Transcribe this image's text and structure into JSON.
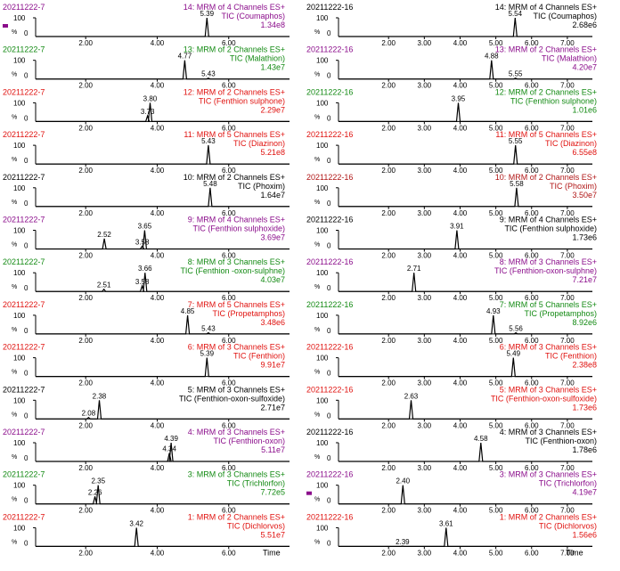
{
  "colors": {
    "black": "#000000",
    "purple": "#8b0d8b",
    "green": "#138a13",
    "red": "#e0120f",
    "darkred": "#b01515",
    "trace": "#000000",
    "marker": "#8b0d8b"
  },
  "chart_data": [
    {
      "type": "line",
      "sample": "20211222-7",
      "x_axis_label": "Time",
      "xlim": [
        0.6,
        7.7
      ],
      "ylim": [
        0,
        100
      ],
      "x_ticks": [
        "2.00",
        "4.00",
        "6.00"
      ],
      "y_ticks": [
        "100",
        "0"
      ],
      "y_unit": "%",
      "panels": [
        {
          "channel": "14: MRM of 4 Channels ES+",
          "compound": "TIC (Coumaphos)",
          "intensity": "1.34e8",
          "color": "purple",
          "peaks": [
            {
              "rt": 5.39,
              "h": 100,
              "label": "5.39"
            }
          ],
          "marker": true
        },
        {
          "channel": "13: MRM of 2 Channels ES+",
          "compound": "TIC (Malathion)",
          "intensity": "1.43e7",
          "color": "green",
          "peaks": [
            {
              "rt": 4.77,
              "h": 100,
              "label": "4.77"
            },
            {
              "rt": 5.43,
              "h": 5,
              "label": "5.43"
            }
          ]
        },
        {
          "channel": "12: MRM of 2 Channels ES+",
          "compound": "TIC (Fenthion sulphone)",
          "intensity": "2.29e7",
          "color": "red",
          "peaks": [
            {
              "rt": 3.8,
              "h": 100,
              "label": "3.80"
            },
            {
              "rt": 3.73,
              "h": 30,
              "label": "3.73"
            }
          ]
        },
        {
          "channel": "11: MRM of 5 Channels ES+",
          "compound": "TIC (Diazinon)",
          "intensity": "5.21e8",
          "color": "red",
          "peaks": [
            {
              "rt": 5.43,
              "h": 100,
              "label": "5.43"
            }
          ]
        },
        {
          "channel": "10: MRM of 2 Channels ES+",
          "compound": "TIC (Phoxim)",
          "intensity": "1.64e7",
          "color": "black",
          "peaks": [
            {
              "rt": 5.48,
              "h": 100,
              "label": "5.48"
            }
          ]
        },
        {
          "channel": "9: MRM of 4 Channels ES+",
          "compound": "TIC (Fenthion sulphoxide)",
          "intensity": "3.69e7",
          "color": "purple",
          "peaks": [
            {
              "rt": 3.65,
              "h": 100,
              "label": "3.65"
            },
            {
              "rt": 2.52,
              "h": 55,
              "label": "2.52"
            },
            {
              "rt": 3.58,
              "h": 15,
              "label": "3.58"
            }
          ]
        },
        {
          "channel": "8: MRM of 3 Channels ES+",
          "compound": "TIC (Fenthion -oxon-sulphne)",
          "intensity": "4.03e7",
          "color": "green",
          "peaks": [
            {
              "rt": 3.66,
              "h": 100,
              "label": "3.66"
            },
            {
              "rt": 3.58,
              "h": 30,
              "label": "3.58"
            },
            {
              "rt": 2.51,
              "h": 12,
              "label": "2.51"
            }
          ]
        },
        {
          "channel": "7: MRM of 5 Channels ES+",
          "compound": "TIC (Propetamphos)",
          "intensity": "3.48e6",
          "color": "red",
          "peaks": [
            {
              "rt": 4.85,
              "h": 100,
              "label": "4.85"
            },
            {
              "rt": 5.43,
              "h": 6,
              "label": "5.43"
            }
          ]
        },
        {
          "channel": "6: MRM of 3 Channels ES+",
          "compound": "TIC (Fenthion)",
          "intensity": "9.91e7",
          "color": "red",
          "peaks": [
            {
              "rt": 5.39,
              "h": 100,
              "label": "5.39"
            }
          ]
        },
        {
          "channel": "5: MRM of 3 Channels ES+",
          "compound": "TIC (Fenthion-oxon-sulfoxide)",
          "intensity": "2.71e7",
          "color": "black",
          "peaks": [
            {
              "rt": 2.38,
              "h": 100,
              "label": "2.38"
            },
            {
              "rt": 2.08,
              "h": 8,
              "label": "2.08"
            }
          ]
        },
        {
          "channel": "4: MRM of 3 Channels ES+",
          "compound": "TIC (Fenthion-oxon)",
          "intensity": "5.11e7",
          "color": "purple",
          "peaks": [
            {
              "rt": 4.39,
              "h": 100,
              "label": "4.39"
            },
            {
              "rt": 4.34,
              "h": 45,
              "label": "4.34"
            }
          ]
        },
        {
          "channel": "3: MRM of 3 Channels ES+",
          "compound": "TIC (Trichlorfon)",
          "intensity": "7.72e5",
          "color": "green",
          "peaks": [
            {
              "rt": 2.35,
              "h": 100,
              "label": "2.35"
            },
            {
              "rt": 2.26,
              "h": 40,
              "label": "2.26"
            }
          ]
        },
        {
          "channel": "1: MRM of 2 Channels ES+",
          "compound": "TIC (Dichlorvos)",
          "intensity": "5.51e7",
          "color": "red",
          "peaks": [
            {
              "rt": 3.42,
              "h": 100,
              "label": "3.42"
            }
          ]
        }
      ]
    },
    {
      "type": "line",
      "sample": "20211222-16",
      "x_axis_label": "Time",
      "xlim": [
        0.6,
        7.7
      ],
      "ylim": [
        0,
        100
      ],
      "x_ticks": [
        "2.00",
        "3.00",
        "4.00",
        "5.00",
        "6.00",
        "7.00"
      ],
      "y_ticks": [
        "100",
        "0"
      ],
      "y_unit": "%",
      "panels": [
        {
          "channel": "14: MRM of 4 Channels ES+",
          "compound": "TIC (Coumaphos)",
          "intensity": "2.68e6",
          "color": "black",
          "peaks": [
            {
              "rt": 5.54,
              "h": 100,
              "label": "5.54"
            }
          ]
        },
        {
          "channel": "13: MRM of 2 Channels ES+",
          "compound": "TIC (Malathion)",
          "intensity": "4.20e7",
          "color": "purple",
          "peaks": [
            {
              "rt": 4.88,
              "h": 100,
              "label": "4.88"
            },
            {
              "rt": 5.55,
              "h": 5,
              "label": "5.55"
            }
          ]
        },
        {
          "channel": "12: MRM of 2 Channels ES+",
          "compound": "TIC (Fenthion sulphone)",
          "intensity": "1.01e6",
          "color": "green",
          "peaks": [
            {
              "rt": 3.95,
              "h": 100,
              "label": "3.95"
            }
          ]
        },
        {
          "channel": "11: MRM of 5 Channels ES+",
          "compound": "TIC (Diazinon)",
          "intensity": "6.55e8",
          "color": "red",
          "peaks": [
            {
              "rt": 5.55,
              "h": 100,
              "label": "5.55"
            }
          ]
        },
        {
          "channel": "10: MRM of 2 Channels ES+",
          "compound": "TIC (Phoxim)",
          "intensity": "3.50e7",
          "color": "darkred",
          "peaks": [
            {
              "rt": 5.58,
              "h": 100,
              "label": "5.58"
            }
          ]
        },
        {
          "channel": "9: MRM of 4 Channels ES+",
          "compound": "TIC (Fenthion sulphoxide)",
          "intensity": "1.73e6",
          "color": "black",
          "peaks": [
            {
              "rt": 3.91,
              "h": 100,
              "label": "3.91"
            }
          ]
        },
        {
          "channel": "8: MRM of 3 Channels ES+",
          "compound": "TIC (Fenthion-oxon-sulphne)",
          "intensity": "7.21e7",
          "color": "purple",
          "peaks": [
            {
              "rt": 2.71,
              "h": 100,
              "label": "2.71"
            }
          ]
        },
        {
          "channel": "7: MRM of 5 Channels ES+",
          "compound": "TIC (Propetamphos)",
          "intensity": "8.92e6",
          "color": "green",
          "peaks": [
            {
              "rt": 4.93,
              "h": 100,
              "label": "4.93"
            },
            {
              "rt": 5.56,
              "h": 6,
              "label": "5.56"
            }
          ]
        },
        {
          "channel": "6: MRM of 3 Channels ES+",
          "compound": "TIC (Fenthion)",
          "intensity": "2.38e8",
          "color": "red",
          "peaks": [
            {
              "rt": 5.49,
              "h": 100,
              "label": "5.49"
            }
          ]
        },
        {
          "channel": "5: MRM of 3 Channels ES+",
          "compound": "TIC (Fenthion-oxon-sulfoxide)",
          "intensity": "1.73e6",
          "color": "red",
          "peaks": [
            {
              "rt": 2.63,
              "h": 100,
              "label": "2.63"
            }
          ]
        },
        {
          "channel": "4: MRM of 3 Channels ES+",
          "compound": "TIC (Fenthion-oxon)",
          "intensity": "1.78e6",
          "color": "black",
          "peaks": [
            {
              "rt": 4.58,
              "h": 100,
              "label": "4.58"
            }
          ]
        },
        {
          "channel": "3: MRM of 3 Channels ES+",
          "compound": "TIC (Trichlorfon)",
          "intensity": "4.19e7",
          "color": "purple",
          "peaks": [
            {
              "rt": 2.4,
              "h": 100,
              "label": "2.40"
            }
          ],
          "marker": true
        },
        {
          "channel": "1: MRM of 2 Channels ES+",
          "compound": "TIC (Dichlorvos)",
          "intensity": "1.56e6",
          "color": "red",
          "peaks": [
            {
              "rt": 3.61,
              "h": 100,
              "label": "3.61"
            },
            {
              "rt": 2.39,
              "h": 2,
              "label": "2.39"
            }
          ]
        }
      ]
    }
  ]
}
